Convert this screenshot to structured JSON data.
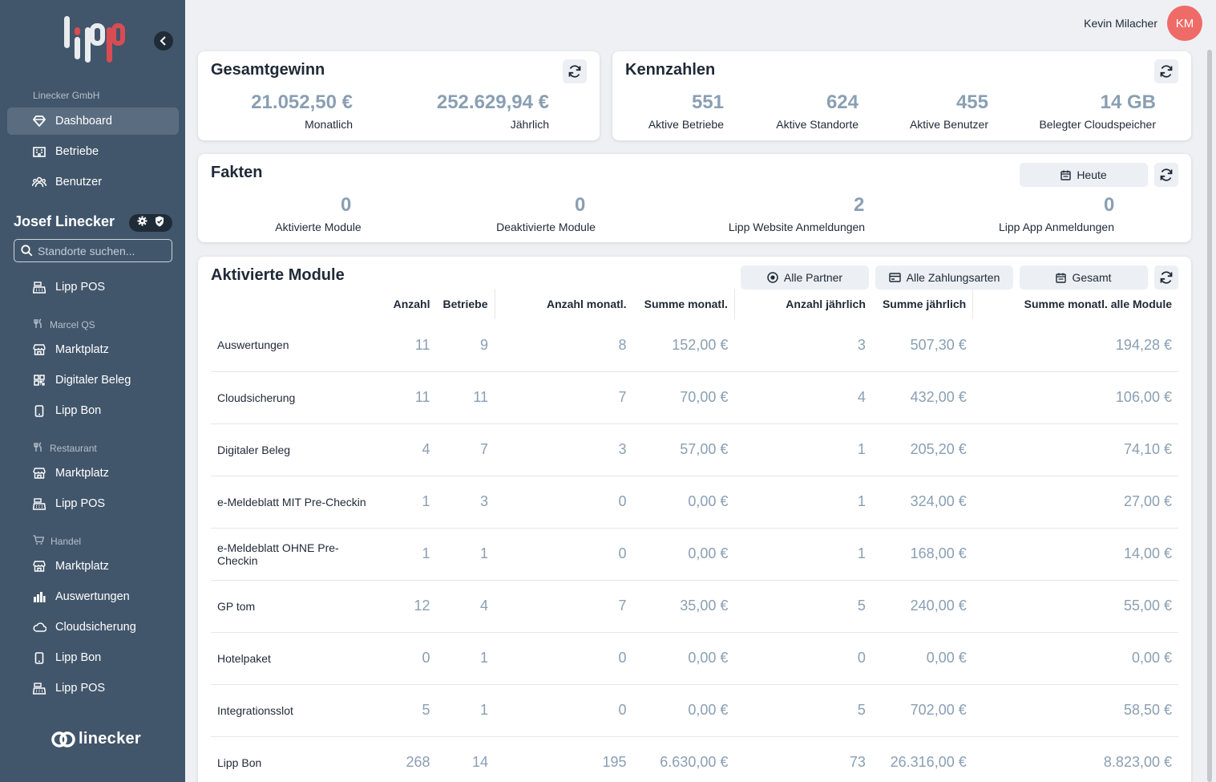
{
  "sidebar": {
    "company": "Linecker GmbH",
    "main_nav": [
      {
        "label": "Dashboard",
        "icon": "gem-icon",
        "active": true
      },
      {
        "label": "Betriebe",
        "icon": "building-icon",
        "active": false
      },
      {
        "label": "Benutzer",
        "icon": "users-icon",
        "active": false
      }
    ],
    "org_name": "Josef Linecker",
    "search_placeholder": "Standorte suchen...",
    "first_item": "Lipp POS",
    "groups": [
      {
        "name": "Marcel QS",
        "items": [
          "Marktplatz",
          "Digitaler Beleg",
          "Lipp Bon"
        ]
      },
      {
        "name": "Restaurant",
        "items": [
          "Marktplatz",
          "Lipp POS"
        ]
      },
      {
        "name": "Handel",
        "items": [
          "Marktplatz",
          "Auswertungen",
          "Cloudsicherung",
          "Lipp Bon",
          "Lipp POS"
        ]
      }
    ],
    "brand": "linecker"
  },
  "header": {
    "user_name": "Kevin Milacher",
    "avatar_initials": "KM"
  },
  "gesamtgewinn": {
    "title": "Gesamtgewinn",
    "monthly_value": "21.052,50 €",
    "monthly_label": "Monatlich",
    "yearly_value": "252.629,94 €",
    "yearly_label": "Jährlich"
  },
  "kennzahlen": {
    "title": "Kennzahlen",
    "items": [
      {
        "value": "551",
        "label": "Aktive Betriebe"
      },
      {
        "value": "624",
        "label": "Aktive Standorte"
      },
      {
        "value": "455",
        "label": "Aktive Benutzer"
      },
      {
        "value": "14 GB",
        "label": "Belegter Cloudspeicher"
      }
    ]
  },
  "fakten": {
    "title": "Fakten",
    "period_button": "Heute",
    "items": [
      {
        "value": "0",
        "label": "Aktivierte Module"
      },
      {
        "value": "0",
        "label": "Deaktivierte Module"
      },
      {
        "value": "2",
        "label": "Lipp Website Anmeldungen"
      },
      {
        "value": "0",
        "label": "Lipp App Anmeldungen"
      }
    ]
  },
  "module": {
    "title": "Aktivierte Module",
    "filters": {
      "partner": "Alle Partner",
      "payment": "Alle Zahlungsarten",
      "period": "Gesamt"
    },
    "columns": [
      "",
      "Anzahl",
      "Betriebe",
      "Anzahl monatl.",
      "Summe monatl.",
      "Anzahl jährlich",
      "Summe jährlich",
      "Summe monatl. alle Module"
    ],
    "rows": [
      [
        "Auswertungen",
        "11",
        "9",
        "8",
        "152,00 €",
        "3",
        "507,30 €",
        "194,28 €"
      ],
      [
        "Cloudsicherung",
        "11",
        "11",
        "7",
        "70,00 €",
        "4",
        "432,00 €",
        "106,00 €"
      ],
      [
        "Digitaler Beleg",
        "4",
        "7",
        "3",
        "57,00 €",
        "1",
        "205,20 €",
        "74,10 €"
      ],
      [
        "e-Meldeblatt MIT Pre-Checkin",
        "1",
        "3",
        "0",
        "0,00 €",
        "1",
        "324,00 €",
        "27,00 €"
      ],
      [
        "e-Meldeblatt OHNE Pre-Checkin",
        "1",
        "1",
        "0",
        "0,00 €",
        "1",
        "168,00 €",
        "14,00 €"
      ],
      [
        "GP tom",
        "12",
        "4",
        "7",
        "35,00 €",
        "5",
        "240,00 €",
        "55,00 €"
      ],
      [
        "Hotelpaket",
        "0",
        "1",
        "0",
        "0,00 €",
        "0",
        "0,00 €",
        "0,00 €"
      ],
      [
        "Integrationsslot",
        "5",
        "1",
        "0",
        "0,00 €",
        "5",
        "702,00 €",
        "58,50 €"
      ],
      [
        "Lipp Bon",
        "268",
        "14",
        "195",
        "6.630,00 €",
        "73",
        "26.316,00 €",
        "8.823,00 €"
      ]
    ]
  },
  "colors": {
    "sidebar": "#42566b",
    "value": "#8a9fb3",
    "avatar": "#ef6b67",
    "active_nav": "#5a6d80"
  }
}
